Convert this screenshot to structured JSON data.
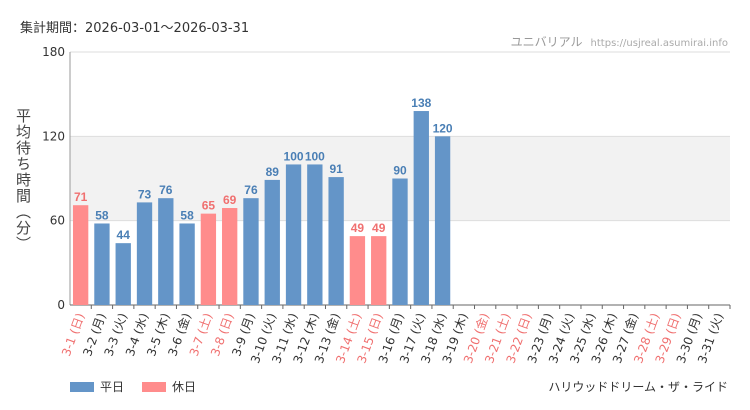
{
  "header": {
    "period": "集計期間：2026-03-01～2026-03-31",
    "site_name": "ユニバリアル",
    "site_url": "https://usjreal.asumirai.info"
  },
  "footer": {
    "attraction": "ハリウッドドリーム・ザ・ライド"
  },
  "legend": {
    "weekday": "平日",
    "holiday": "休日"
  },
  "colors": {
    "weekday": "#6495c8",
    "holiday": "#ff8c8c",
    "band": "#f2f2f2",
    "grid": "#dddddd",
    "axis": "#999999"
  },
  "chart_data": {
    "type": "bar",
    "ylabel": "平均待ち時間（分）",
    "ylim": [
      0,
      180
    ],
    "yticks": [
      0,
      60,
      120,
      180
    ],
    "categories": [
      "3-1 (日)",
      "3-2 (月)",
      "3-3 (火)",
      "3-4 (水)",
      "3-5 (木)",
      "3-6 (金)",
      "3-7 (土)",
      "3-8 (日)",
      "3-9 (月)",
      "3-10 (火)",
      "3-11 (水)",
      "3-12 (木)",
      "3-13 (金)",
      "3-14 (土)",
      "3-15 (日)",
      "3-16 (月)",
      "3-17 (火)",
      "3-18 (水)",
      "3-19 (木)",
      "3-20 (金)",
      "3-21 (土)",
      "3-22 (日)",
      "3-23 (月)",
      "3-24 (火)",
      "3-25 (水)",
      "3-26 (木)",
      "3-27 (金)",
      "3-28 (土)",
      "3-29 (日)",
      "3-30 (月)",
      "3-31 (火)"
    ],
    "values": [
      71,
      58,
      44,
      73,
      76,
      58,
      65,
      69,
      76,
      89,
      100,
      100,
      91,
      49,
      49,
      90,
      138,
      120,
      null,
      null,
      null,
      null,
      null,
      null,
      null,
      null,
      null,
      null,
      null,
      null,
      null
    ],
    "holiday": [
      true,
      false,
      false,
      false,
      false,
      false,
      true,
      true,
      false,
      false,
      false,
      false,
      false,
      true,
      true,
      false,
      false,
      false,
      false,
      true,
      true,
      true,
      false,
      false,
      false,
      false,
      false,
      true,
      true,
      false,
      false
    ]
  }
}
